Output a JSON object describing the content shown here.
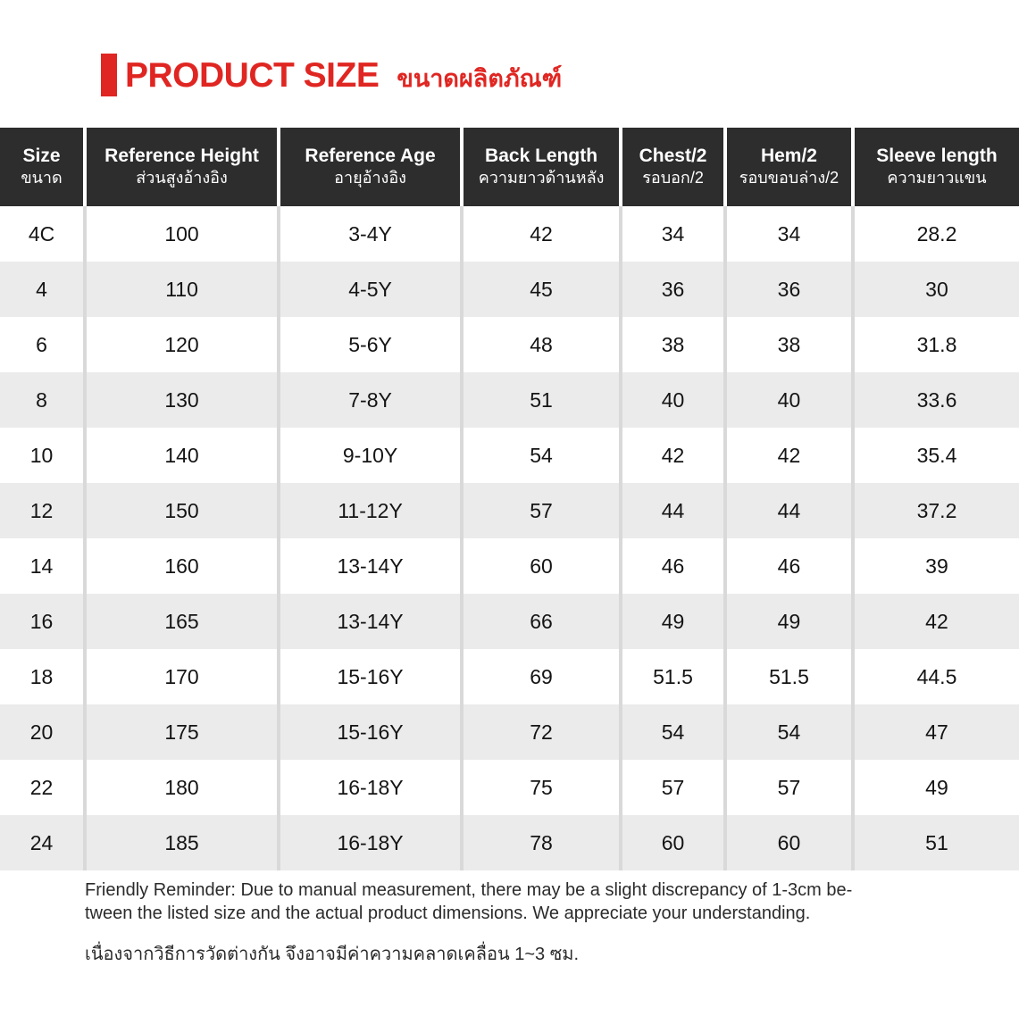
{
  "title": {
    "en": "PRODUCT SIZE",
    "th": "ขนาดผลิตภัณฑ์"
  },
  "table": {
    "columns": [
      {
        "en": "Size",
        "th": "ขนาด"
      },
      {
        "en": "Reference Height",
        "th": "ส่วนสูงอ้างอิง"
      },
      {
        "en": "Reference Age",
        "th": "อายุอ้างอิง"
      },
      {
        "en": "Back Length",
        "th": "ความยาวด้านหลัง"
      },
      {
        "en": "Chest/2",
        "th": "รอบอก/2"
      },
      {
        "en": "Hem/2",
        "th": "รอบขอบล่าง/2"
      },
      {
        "en": "Sleeve length",
        "th": "ความยาวแขน"
      }
    ],
    "rows": [
      [
        "4C",
        "100",
        "3-4Y",
        "42",
        "34",
        "34",
        "28.2"
      ],
      [
        "4",
        "110",
        "4-5Y",
        "45",
        "36",
        "36",
        "30"
      ],
      [
        "6",
        "120",
        "5-6Y",
        "48",
        "38",
        "38",
        "31.8"
      ],
      [
        "8",
        "130",
        "7-8Y",
        "51",
        "40",
        "40",
        "33.6"
      ],
      [
        "10",
        "140",
        "9-10Y",
        "54",
        "42",
        "42",
        "35.4"
      ],
      [
        "12",
        "150",
        "11-12Y",
        "57",
        "44",
        "44",
        "37.2"
      ],
      [
        "14",
        "160",
        "13-14Y",
        "60",
        "46",
        "46",
        "39"
      ],
      [
        "16",
        "165",
        "13-14Y",
        "66",
        "49",
        "49",
        "42"
      ],
      [
        "18",
        "170",
        "15-16Y",
        "69",
        "51.5",
        "51.5",
        "44.5"
      ],
      [
        "20",
        "175",
        "15-16Y",
        "72",
        "54",
        "54",
        "47"
      ],
      [
        "22",
        "180",
        "16-18Y",
        "75",
        "57",
        "57",
        "49"
      ],
      [
        "24",
        "185",
        "16-18Y",
        "78",
        "60",
        "60",
        "51"
      ]
    ]
  },
  "footer": {
    "note_en_line1": "Friendly Reminder: Due to manual measurement, there may be a slight discrepancy of 1-3cm be-",
    "note_en_line2": "tween the listed size and the actual product dimensions. We appreciate your understanding.",
    "note_th": "เนื่องจากวิธีการวัดต่างกัน จึงอาจมีค่าความคลาดเคลื่อน 1~3 ซม."
  },
  "colors": {
    "accent_red": "#e02622",
    "header_bg": "#2d2d2d",
    "alt_row_bg": "#ebebeb",
    "divider": "#d9d9d9"
  }
}
